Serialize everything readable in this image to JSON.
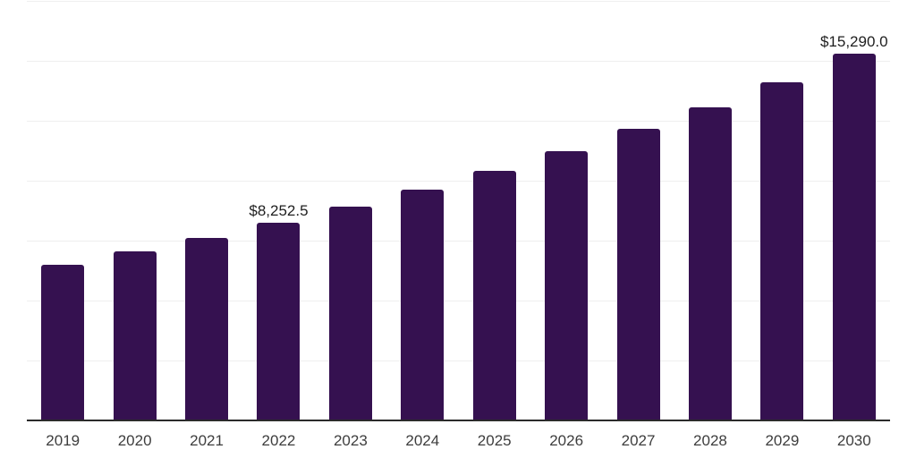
{
  "chart_data": {
    "type": "bar",
    "title": "",
    "xlabel": "",
    "ylabel": "",
    "categories": [
      "2019",
      "2020",
      "2021",
      "2022",
      "2023",
      "2024",
      "2025",
      "2026",
      "2027",
      "2028",
      "2029",
      "2030"
    ],
    "values": [
      6490,
      7050,
      7610,
      8252.5,
      8900,
      9630,
      10400,
      11230,
      12160,
      13060,
      14100,
      15290
    ],
    "data_labels": [
      {
        "category": "2022",
        "text": "$8,252.5"
      },
      {
        "category": "2030",
        "text": "$15,290.0"
      }
    ],
    "ylim": [
      0,
      17500
    ],
    "gridline_interval": 2500,
    "grid": "horizontal",
    "y_axis_tick_labels": "none",
    "legend": "none"
  },
  "style": {
    "bar_color": "#351150",
    "gridline_color": "#efefef",
    "axis_line_color": "#2b2b2b",
    "tick_label_color": "#3d3d3d",
    "data_label_color": "#1f1f1f",
    "background_color": "#ffffff"
  }
}
